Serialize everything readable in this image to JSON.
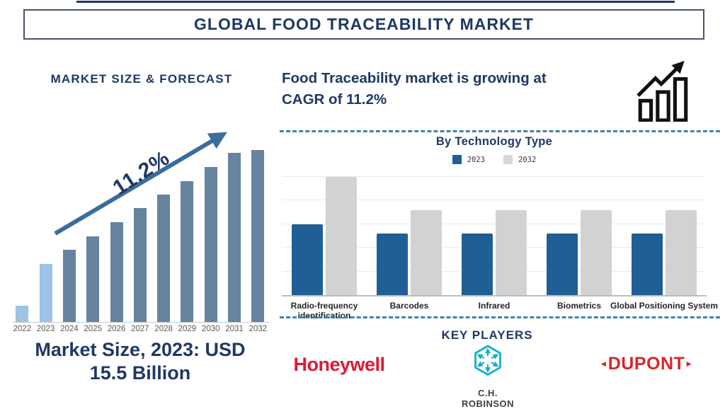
{
  "header": {
    "title": "GLOBAL FOOD TRACEABILITY MARKET"
  },
  "left_panel": {
    "heading": "MARKET SIZE & FORECAST",
    "cagr_label": "11.2%",
    "caption_line1": "Market Size, 2023: USD",
    "caption_line2": "15.5 Billion"
  },
  "right_panel": {
    "headline_line1": "Food Traceability market is growing at",
    "headline_line2": "CAGR of 11.2%",
    "section_title": "By Technology Type",
    "key_players_title": "KEY PLAYERS",
    "players": [
      {
        "name": "Honeywell",
        "logo_text": "Honeywell",
        "color": "#E01933"
      },
      {
        "name": "C.H. Robinson",
        "logo_text": "C.H. ROBINSON",
        "icon_color": "#14AFCB",
        "text_color": "#3B3F46"
      },
      {
        "name": "DuPont",
        "logo_text": "DUPONT",
        "color": "#D8262C"
      }
    ]
  },
  "icons": {
    "growth_chart_icon": "bar-chart-with-rising-arrow",
    "forecast_arrow_icon": "rising-trend-arrow",
    "chr_logo_icon": "hexagon-snowflake-arrows"
  },
  "colors": {
    "navy": "#1F3864",
    "forecast_bar_default": "#66839F",
    "forecast_bar_highlight": "#9DC3E6",
    "forecast_arrow": "#3A6D9E",
    "tech_bar_2023": "#1F5F96",
    "tech_bar_2032": "#D2D2D2",
    "legend_2032_swatch": "#D9D9D9",
    "dashed_divider": "#4282AE",
    "year_label_gray": "#595959"
  },
  "chart_data": [
    {
      "type": "bar",
      "title": "Market Size & Forecast",
      "categories": [
        "2022",
        "2023",
        "2024",
        "2025",
        "2026",
        "2027",
        "2028",
        "2029",
        "2030",
        "2031",
        "2032"
      ],
      "values_relative_pct": [
        9.5,
        33.7,
        42.0,
        49.8,
        58.0,
        66.3,
        74.1,
        81.9,
        90.1,
        98.4,
        100
      ],
      "known_point": "2023 market size = USD 15.5 Billion",
      "cagr_annotation": "11.2%",
      "highlight_years": [
        "2022",
        "2023"
      ],
      "ylabel": "",
      "xlabel": "",
      "y_axis_shown": false,
      "grid": false,
      "legend_position": "none"
    },
    {
      "type": "bar",
      "title": "By Technology Type",
      "categories": [
        "Radio-frequency identification",
        "Barcodes",
        "Infrared",
        "Biometrics",
        "Global Positioning System"
      ],
      "series": [
        {
          "name": "2023",
          "color": "#1F5F96",
          "values_grid_units": [
            3.0,
            2.6,
            2.6,
            2.6,
            2.6
          ]
        },
        {
          "name": "2032",
          "color": "#D2D2D2",
          "values_grid_units": [
            5.0,
            3.6,
            3.6,
            3.6,
            3.6
          ]
        }
      ],
      "value_axis_note": "no numeric axis; values estimated in gridline units",
      "ylim_units": [
        0,
        5
      ],
      "gridlines": 5,
      "grid": true,
      "legend_position": "top"
    }
  ]
}
